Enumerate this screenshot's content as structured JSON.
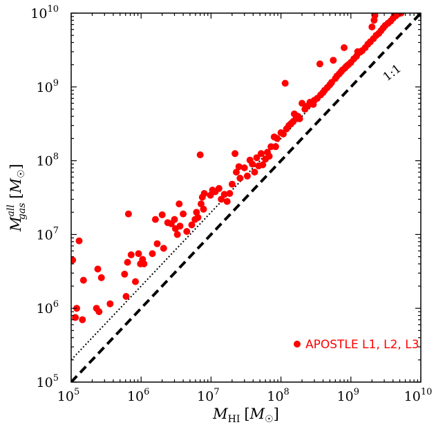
{
  "chart_data": {
    "type": "scatter",
    "xscale": "log",
    "yscale": "log",
    "xlim": [
      100000,
      10000000000
    ],
    "ylim": [
      100000,
      10000000000
    ],
    "grid": false,
    "legend_position": "lower-right",
    "xlabel_parts": {
      "base": "M",
      "sub": "HI",
      "unit": "[M",
      "unit_sub": "☉",
      "close": "]"
    },
    "ylabel_parts": {
      "base": "M",
      "sub": "gas",
      "sup": "all",
      "unit": "[M",
      "unit_sub": "☉",
      "close": "]"
    },
    "x_tick_exponents": [
      5,
      6,
      7,
      8,
      9,
      10
    ],
    "y_tick_exponents": [
      5,
      6,
      7,
      8,
      9,
      10
    ],
    "tick_base": "10",
    "colors": {
      "points": "#ff0000",
      "lines": "#000000"
    },
    "reference_lines": [
      {
        "name": "1:1",
        "label": "1:1",
        "style": "dashed",
        "factor": 1
      },
      {
        "name": "",
        "label": "",
        "style": "dotted",
        "factor": 2
      }
    ],
    "series": [
      {
        "name": "APOSTLE L1, L2, L3",
        "points": [
          [
            105000.0,
            4500000.0
          ],
          [
            115000.0,
            750000.0
          ],
          [
            120000.0,
            1000000.0
          ],
          [
            130000.0,
            8200000.0
          ],
          [
            145000.0,
            700000.0
          ],
          [
            150000.0,
            2400000.0
          ],
          [
            230000.0,
            1000000.0
          ],
          [
            240000.0,
            3400000.0
          ],
          [
            250000.0,
            900000.0
          ],
          [
            270000.0,
            2600000.0
          ],
          [
            360000.0,
            1150000.0
          ],
          [
            580000.0,
            2900000.0
          ],
          [
            610000.0,
            1450000.0
          ],
          [
            640000.0,
            4200000.0
          ],
          [
            660000.0,
            19000000.0
          ],
          [
            720000.0,
            5300000.0
          ],
          [
            830000.0,
            2300000.0
          ],
          [
            920000.0,
            5500000.0
          ],
          [
            980000.0,
            4000000.0
          ],
          [
            1050000.0,
            4600000.0
          ],
          [
            1100000.0,
            4000000.0
          ],
          [
            1450000.0,
            5500000.0
          ],
          [
            1600000.0,
            16000000.0
          ],
          [
            1700000.0,
            7500000.0
          ],
          [
            2000000.0,
            18500000.0
          ],
          [
            2100000.0,
            6500000.0
          ],
          [
            2400000.0,
            14500000.0
          ],
          [
            2700000.0,
            14000000.0
          ],
          [
            3000000.0,
            16000000.0
          ],
          [
            3100000.0,
            12000000.0
          ],
          [
            3300000.0,
            10000000.0
          ],
          [
            3500000.0,
            26000000.0
          ],
          [
            3600000.0,
            13000000.0
          ],
          [
            4000000.0,
            19000000.0
          ],
          [
            4500000.0,
            11000000.0
          ],
          [
            5300000.0,
            13500000.0
          ],
          [
            5900000.0,
            16000000.0
          ],
          [
            6200000.0,
            20000000.0
          ],
          [
            6500000.0,
            17000000.0
          ],
          [
            7000000.0,
            120000000.0
          ],
          [
            7200000.0,
            26000000.0
          ],
          [
            7500000.0,
            32000000.0
          ],
          [
            7800000.0,
            22000000.0
          ],
          [
            8000000.0,
            36000000.0
          ],
          [
            9800000.0,
            34000000.0
          ],
          [
            10500000.0,
            40000000.0
          ],
          [
            11500000.0,
            38000000.0
          ],
          [
            13000000.0,
            42000000.0
          ],
          [
            14000000.0,
            30000000.0
          ],
          [
            15500000.0,
            35000000.0
          ],
          [
            17000000.0,
            28000000.0
          ],
          [
            18500000.0,
            36000000.0
          ],
          [
            20000000.0,
            48000000.0
          ],
          [
            22000000.0,
            125000000.0
          ],
          [
            23000000.0,
            70000000.0
          ],
          [
            25000000.0,
            83000000.0
          ],
          [
            26000000.0,
            58000000.0
          ],
          [
            30000000.0,
            80000000.0
          ],
          [
            33000000.0,
            62000000.0
          ],
          [
            36000000.0,
            102000000.0
          ],
          [
            39000000.0,
            90000000.0
          ],
          [
            42000000.0,
            70000000.0
          ],
          [
            45000000.0,
            110000000.0
          ],
          [
            48000000.0,
            85000000.0
          ],
          [
            52000000.0,
            125000000.0
          ],
          [
            55000000.0,
            88000000.0
          ],
          [
            60000000.0,
            105000000.0
          ],
          [
            64000000.0,
            130000000.0
          ],
          [
            68000000.0,
            115000000.0
          ],
          [
            72000000.0,
            155000000.0
          ],
          [
            80000000.0,
            210000000.0
          ],
          [
            84000000.0,
            155000000.0
          ],
          [
            88000000.0,
            200000000.0
          ],
          [
            100000000.0,
            240000000.0
          ],
          [
            108000000.0,
            230000000.0
          ],
          [
            115000000.0,
            1120000000.0
          ],
          [
            120000000.0,
            270000000.0
          ],
          [
            130000000.0,
            300000000.0
          ],
          [
            140000000.0,
            320000000.0
          ],
          [
            150000000.0,
            340000000.0
          ],
          [
            155000000.0,
            430000000.0
          ],
          [
            165000000.0,
            380000000.0
          ],
          [
            175000000.0,
            400000000.0
          ],
          [
            185000000.0,
            370000000.0
          ],
          [
            200000000.0,
            600000000.0
          ],
          [
            220000000.0,
            500000000.0
          ],
          [
            240000000.0,
            550000000.0
          ],
          [
            260000000.0,
            620000000.0
          ],
          [
            290000000.0,
            580000000.0
          ],
          [
            300000000.0,
            660000000.0
          ],
          [
            330000000.0,
            700000000.0
          ],
          [
            360000000.0,
            2050000000.0
          ],
          [
            370000000.0,
            780000000.0
          ],
          [
            400000000.0,
            840000000.0
          ],
          [
            420000000.0,
            900000000.0
          ],
          [
            460000000.0,
            980000000.0
          ],
          [
            500000000.0,
            1070000000.0
          ],
          [
            530000000.0,
            1150000000.0
          ],
          [
            560000000.0,
            2300000000.0
          ],
          [
            600000000.0,
            1300000000.0
          ],
          [
            630000000.0,
            1400000000.0
          ],
          [
            680000000.0,
            1500000000.0
          ],
          [
            720000000.0,
            1600000000.0
          ],
          [
            760000000.0,
            1700000000.0
          ],
          [
            800000000.0,
            3400000000.0
          ],
          [
            820000000.0,
            1800000000.0
          ],
          [
            860000000.0,
            1900000000.0
          ],
          [
            920000000.0,
            2000000000.0
          ],
          [
            1000000000.0,
            2150000000.0
          ],
          [
            1100000000.0,
            2400000000.0
          ],
          [
            1200000000.0,
            2600000000.0
          ],
          [
            1250000000.0,
            3000000000.0
          ],
          [
            1350000000.0,
            2950000000.0
          ],
          [
            1450000000.0,
            3100000000.0
          ],
          [
            1600000000.0,
            3400000000.0
          ],
          [
            1750000000.0,
            3800000000.0
          ],
          [
            1900000000.0,
            4100000000.0
          ],
          [
            2000000000.0,
            6500000000.0
          ],
          [
            2100000000.0,
            4500000000.0
          ],
          [
            2150000000.0,
            8000000000.0
          ],
          [
            2300000000.0,
            5000000000.0
          ],
          [
            2500000000.0,
            5300000000.0
          ],
          [
            2700000000.0,
            5800000000.0
          ],
          [
            2900000000.0,
            6300000000.0
          ],
          [
            3100000000.0,
            6800000000.0
          ],
          [
            3400000000.0,
            7300000000.0
          ],
          [
            3700000000.0,
            7800000000.0
          ],
          [
            4000000000.0,
            8500000000.0
          ],
          [
            4400000000.0,
            9200000000.0
          ],
          [
            4800000000.0,
            9800000000.0
          ],
          [
            2200000000.0,
            9300000000.0
          ],
          [
            4200000000.0,
            9600000000.0
          ],
          [
            5200000000.0,
            10000000000.0
          ]
        ]
      }
    ]
  }
}
